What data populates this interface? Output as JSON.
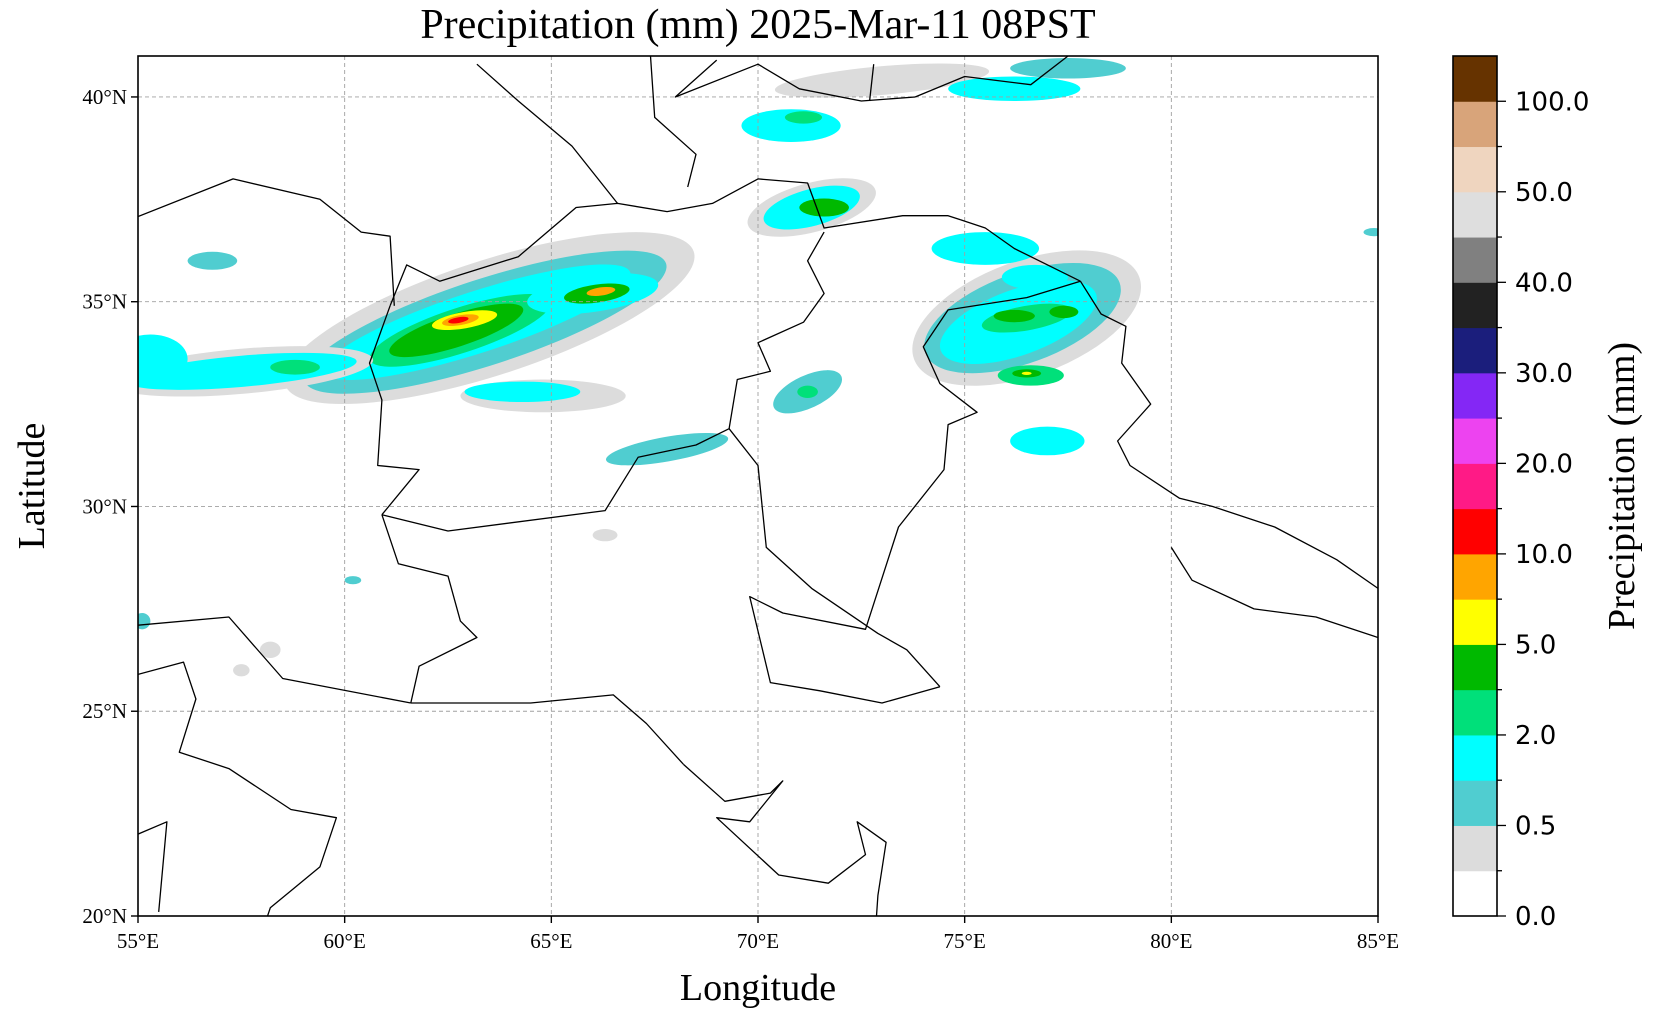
{
  "title": "Precipitation (mm)  2025-Mar-11 08PST",
  "xlabel": "Longitude",
  "ylabel": "Latitude",
  "colorbar_label": "Precipitation (mm)",
  "lon_ticks": [
    "55°E",
    "60°E",
    "65°E",
    "70°E",
    "75°E",
    "80°E",
    "85°E"
  ],
  "lat_ticks": [
    "20°N",
    "25°N",
    "30°N",
    "35°N",
    "40°N"
  ],
  "colorbar_ticks": [
    "0.0",
    "0.5",
    "2.0",
    "5.0",
    "10.0",
    "20.0",
    "30.0",
    "40.0",
    "50.0",
    "100.0"
  ],
  "chart_data": {
    "type": "heatmap",
    "title": "Precipitation (mm)  2025-Mar-11 08PST",
    "xlabel": "Longitude",
    "ylabel": "Latitude",
    "xlim": [
      55,
      85
    ],
    "ylim": [
      20,
      41
    ],
    "colorbar": {
      "label": "Precipitation (mm)",
      "bins": [
        {
          "color": "#ffffff"
        },
        {
          "color": "#dcdcdc"
        },
        {
          "color": "#50cdd0"
        },
        {
          "color": "#00ffff"
        },
        {
          "color": "#00e07a"
        },
        {
          "color": "#00b900"
        },
        {
          "color": "#ffff00"
        },
        {
          "color": "#ffa500"
        },
        {
          "color": "#ff0000"
        },
        {
          "color": "#ff1a86"
        },
        {
          "color": "#ed43f0"
        },
        {
          "color": "#8427f5"
        },
        {
          "color": "#1b1e7c"
        },
        {
          "color": "#222222"
        },
        {
          "color": "#808080"
        },
        {
          "color": "#dedede"
        },
        {
          "color": "#efd5bf"
        },
        {
          "color": "#d8a47a"
        },
        {
          "color": "#663300"
        }
      ]
    },
    "regions": [
      {
        "lon": 63.5,
        "lat": 34.6,
        "rlon": 5.2,
        "rlat": 1.4,
        "rot": -18,
        "bin": 1
      },
      {
        "lon": 63.4,
        "lat": 34.5,
        "rlon": 4.6,
        "rlat": 1.05,
        "rot": -18,
        "bin": 2
      },
      {
        "lon": 63.2,
        "lat": 34.5,
        "rlon": 3.9,
        "rlat": 0.75,
        "rot": -18,
        "bin": 3
      },
      {
        "lon": 62.8,
        "lat": 34.3,
        "rlon": 2.3,
        "rlat": 0.55,
        "rot": -18,
        "bin": 4
      },
      {
        "lon": 62.7,
        "lat": 34.3,
        "rlon": 1.7,
        "rlat": 0.4,
        "rot": -18,
        "bin": 5
      },
      {
        "lon": 62.9,
        "lat": 34.55,
        "rlon": 0.8,
        "rlat": 0.2,
        "rot": -10,
        "bin": 6
      },
      {
        "lon": 62.8,
        "lat": 34.55,
        "rlon": 0.45,
        "rlat": 0.12,
        "rot": -10,
        "bin": 7
      },
      {
        "lon": 62.75,
        "lat": 34.55,
        "rlon": 0.25,
        "rlat": 0.07,
        "rot": -10,
        "bin": 8
      },
      {
        "lon": 66.0,
        "lat": 35.2,
        "rlon": 1.6,
        "rlat": 0.45,
        "rot": -8,
        "bin": 3
      },
      {
        "lon": 66.1,
        "lat": 35.2,
        "rlon": 0.8,
        "rlat": 0.22,
        "rot": -8,
        "bin": 5
      },
      {
        "lon": 66.2,
        "lat": 35.25,
        "rlon": 0.35,
        "rlat": 0.1,
        "rot": -8,
        "bin": 7
      },
      {
        "lon": 57.5,
        "lat": 33.3,
        "rlon": 3.2,
        "rlat": 0.55,
        "rot": -5,
        "bin": 1
      },
      {
        "lon": 57.5,
        "lat": 33.3,
        "rlon": 2.8,
        "rlat": 0.38,
        "rot": -5,
        "bin": 3
      },
      {
        "lon": 58.8,
        "lat": 33.4,
        "rlon": 0.6,
        "rlat": 0.18,
        "rot": 0,
        "bin": 4
      },
      {
        "lon": 55.3,
        "lat": 33.6,
        "rlon": 0.9,
        "rlat": 0.6,
        "rot": 0,
        "bin": 3
      },
      {
        "lon": 56.8,
        "lat": 36.0,
        "rlon": 0.6,
        "rlat": 0.22,
        "rot": 0,
        "bin": 2
      },
      {
        "lon": 64.8,
        "lat": 32.7,
        "rlon": 2.0,
        "rlat": 0.4,
        "rot": 0,
        "bin": 1
      },
      {
        "lon": 64.3,
        "lat": 32.8,
        "rlon": 1.4,
        "rlat": 0.25,
        "rot": 0,
        "bin": 3
      },
      {
        "lon": 67.8,
        "lat": 31.4,
        "rlon": 1.5,
        "rlat": 0.3,
        "rot": -10,
        "bin": 2
      },
      {
        "lon": 71.2,
        "lat": 32.8,
        "rlon": 0.9,
        "rlat": 0.4,
        "rot": -25,
        "bin": 2
      },
      {
        "lon": 71.2,
        "lat": 32.8,
        "rlon": 0.25,
        "rlat": 0.15,
        "rot": 0,
        "bin": 4
      },
      {
        "lon": 71.3,
        "lat": 37.3,
        "rlon": 1.6,
        "rlat": 0.6,
        "rot": -15,
        "bin": 1
      },
      {
        "lon": 71.3,
        "lat": 37.3,
        "rlon": 1.2,
        "rlat": 0.45,
        "rot": -15,
        "bin": 3
      },
      {
        "lon": 71.6,
        "lat": 37.3,
        "rlon": 0.6,
        "rlat": 0.22,
        "rot": 0,
        "bin": 5
      },
      {
        "lon": 70.8,
        "lat": 39.3,
        "rlon": 1.2,
        "rlat": 0.4,
        "rot": 0,
        "bin": 3
      },
      {
        "lon": 71.1,
        "lat": 39.5,
        "rlon": 0.45,
        "rlat": 0.15,
        "rot": 0,
        "bin": 4
      },
      {
        "lon": 73.0,
        "lat": 40.4,
        "rlon": 2.6,
        "rlat": 0.35,
        "rot": -5,
        "bin": 1
      },
      {
        "lon": 76.2,
        "lat": 40.2,
        "rlon": 1.6,
        "rlat": 0.3,
        "rot": 0,
        "bin": 3
      },
      {
        "lon": 77.5,
        "lat": 40.7,
        "rlon": 1.4,
        "rlat": 0.25,
        "rot": 0,
        "bin": 2
      },
      {
        "lon": 76.5,
        "lat": 34.6,
        "rlon": 2.9,
        "rlat": 1.4,
        "rot": -20,
        "bin": 1
      },
      {
        "lon": 76.4,
        "lat": 34.6,
        "rlon": 2.5,
        "rlat": 1.1,
        "rot": -20,
        "bin": 2
      },
      {
        "lon": 76.3,
        "lat": 34.5,
        "rlon": 2.0,
        "rlat": 0.8,
        "rot": -20,
        "bin": 3
      },
      {
        "lon": 76.5,
        "lat": 34.6,
        "rlon": 1.1,
        "rlat": 0.3,
        "rot": -10,
        "bin": 4
      },
      {
        "lon": 76.2,
        "lat": 34.65,
        "rlon": 0.5,
        "rlat": 0.15,
        "rot": 0,
        "bin": 5
      },
      {
        "lon": 77.4,
        "lat": 34.75,
        "rlon": 0.35,
        "rlat": 0.15,
        "rot": 0,
        "bin": 5
      },
      {
        "lon": 76.6,
        "lat": 33.2,
        "rlon": 0.8,
        "rlat": 0.25,
        "rot": 0,
        "bin": 4
      },
      {
        "lon": 76.5,
        "lat": 33.25,
        "rlon": 0.35,
        "rlat": 0.1,
        "rot": 0,
        "bin": 5
      },
      {
        "lon": 76.5,
        "lat": 33.25,
        "rlon": 0.12,
        "rlat": 0.04,
        "rot": 0,
        "bin": 6
      },
      {
        "lon": 77.0,
        "lat": 31.6,
        "rlon": 0.9,
        "rlat": 0.35,
        "rot": 0,
        "bin": 3
      },
      {
        "lon": 75.5,
        "lat": 36.3,
        "rlon": 1.3,
        "rlat": 0.4,
        "rot": 0,
        "bin": 3
      },
      {
        "lon": 76.7,
        "lat": 35.6,
        "rlon": 0.8,
        "rlat": 0.3,
        "rot": 0,
        "bin": 3
      },
      {
        "lon": 84.9,
        "lat": 36.7,
        "rlon": 0.25,
        "rlat": 0.1,
        "rot": 0,
        "bin": 2
      },
      {
        "lon": 55.1,
        "lat": 27.2,
        "rlon": 0.2,
        "rlat": 0.2,
        "rot": 0,
        "bin": 2
      },
      {
        "lon": 60.2,
        "lat": 28.2,
        "rlon": 0.2,
        "rlat": 0.1,
        "rot": 0,
        "bin": 2
      },
      {
        "lon": 66.3,
        "lat": 29.3,
        "rlon": 0.3,
        "rlat": 0.15,
        "rot": 0,
        "bin": 1
      },
      {
        "lon": 58.2,
        "lat": 26.5,
        "rlon": 0.25,
        "rlat": 0.2,
        "rot": 0,
        "bin": 1
      },
      {
        "lon": 57.5,
        "lat": 26.0,
        "rlon": 0.2,
        "rlat": 0.15,
        "rot": 0,
        "bin": 1
      }
    ],
    "borders": [
      [
        [
          61.1,
          34.9
        ],
        [
          61.5,
          35.9
        ],
        [
          62.3,
          35.5
        ],
        [
          64.2,
          36.1
        ],
        [
          65.6,
          37.3
        ],
        [
          66.6,
          37.4
        ],
        [
          67.8,
          37.2
        ],
        [
          68.9,
          37.4
        ],
        [
          70.0,
          38.0
        ],
        [
          71.2,
          37.9
        ],
        [
          71.6,
          36.8
        ],
        [
          73.5,
          37.1
        ],
        [
          74.6,
          37.1
        ],
        [
          74.9,
          37.0
        ]
      ],
      [
        [
          61.1,
          34.9
        ],
        [
          60.6,
          33.5
        ],
        [
          60.9,
          32.6
        ],
        [
          60.8,
          31.0
        ],
        [
          61.8,
          30.9
        ],
        [
          60.9,
          29.8
        ]
      ],
      [
        [
          60.9,
          29.8
        ],
        [
          62.5,
          29.4
        ],
        [
          66.3,
          29.9
        ],
        [
          67.1,
          31.2
        ],
        [
          68.5,
          31.5
        ],
        [
          69.3,
          31.9
        ],
        [
          69.5,
          33.1
        ],
        [
          70.3,
          33.3
        ],
        [
          70.0,
          34.0
        ],
        [
          71.1,
          34.5
        ],
        [
          71.6,
          35.2
        ],
        [
          71.2,
          36.0
        ],
        [
          71.6,
          36.7
        ]
      ],
      [
        [
          60.9,
          29.8
        ],
        [
          61.3,
          28.6
        ],
        [
          62.5,
          28.3
        ],
        [
          62.8,
          27.2
        ],
        [
          63.2,
          26.8
        ],
        [
          61.8,
          26.1
        ],
        [
          61.6,
          25.2
        ]
      ],
      [
        [
          61.6,
          25.2
        ],
        [
          62.5,
          25.2
        ],
        [
          64.5,
          25.2
        ],
        [
          66.5,
          25.4
        ],
        [
          67.3,
          24.7
        ],
        [
          68.2,
          23.7
        ]
      ],
      [
        [
          69.3,
          31.9
        ],
        [
          70.0,
          31.0
        ],
        [
          70.2,
          29.0
        ],
        [
          71.3,
          28.0
        ],
        [
          72.9,
          26.9
        ],
        [
          73.6,
          26.5
        ],
        [
          74.4,
          25.6
        ]
      ],
      [
        [
          74.4,
          25.6
        ],
        [
          73.0,
          25.2
        ],
        [
          71.5,
          25.5
        ],
        [
          70.3,
          25.7
        ],
        [
          69.8,
          27.8
        ],
        [
          70.6,
          27.4
        ],
        [
          72.6,
          27.0
        ],
        [
          73.4,
          29.5
        ],
        [
          74.5,
          30.9
        ],
        [
          74.6,
          32.0
        ],
        [
          75.3,
          32.3
        ],
        [
          74.4,
          33.0
        ],
        [
          74.0,
          33.9
        ],
        [
          74.6,
          34.8
        ],
        [
          76.5,
          35.1
        ],
        [
          77.8,
          35.5
        ]
      ],
      [
        [
          77.8,
          35.5
        ],
        [
          78.3,
          34.7
        ],
        [
          78.9,
          34.4
        ],
        [
          78.8,
          33.5
        ],
        [
          79.5,
          32.5
        ],
        [
          78.7,
          31.6
        ],
        [
          79.0,
          31.0
        ],
        [
          80.2,
          30.2
        ],
        [
          81.0,
          30.0
        ],
        [
          82.5,
          29.5
        ],
        [
          84.0,
          28.7
        ],
        [
          85.0,
          28.0
        ]
      ],
      [
        [
          80.0,
          29.0
        ],
        [
          80.5,
          28.2
        ],
        [
          82.0,
          27.5
        ],
        [
          83.5,
          27.3
        ],
        [
          85.0,
          26.8
        ]
      ],
      [
        [
          74.9,
          37.0
        ],
        [
          75.5,
          36.8
        ],
        [
          76.2,
          36.3
        ],
        [
          77.8,
          35.5
        ]
      ],
      [
        [
          73.8,
          40.0
        ],
        [
          75.0,
          40.5
        ],
        [
          76.6,
          40.3
        ],
        [
          77.5,
          41.0
        ]
      ],
      [
        [
          69.0,
          40.9
        ],
        [
          68.0,
          40.0
        ],
        [
          70.0,
          40.8
        ],
        [
          71.0,
          40.2
        ],
        [
          72.5,
          39.9
        ],
        [
          73.8,
          40.0
        ]
      ],
      [
        [
          67.4,
          41.0
        ],
        [
          67.5,
          39.5
        ],
        [
          68.5,
          38.6
        ],
        [
          68.3,
          37.8
        ]
      ],
      [
        [
          72.8,
          40.8
        ],
        [
          72.7,
          39.9
        ]
      ],
      [
        [
          55.0,
          25.9
        ],
        [
          56.1,
          26.2
        ],
        [
          56.4,
          25.3
        ],
        [
          56.0,
          24.0
        ],
        [
          57.2,
          23.6
        ],
        [
          58.7,
          22.6
        ],
        [
          59.8,
          22.4
        ],
        [
          59.4,
          21.2
        ],
        [
          58.2,
          20.2
        ],
        [
          57.8,
          19.0
        ]
      ],
      [
        [
          55.0,
          27.1
        ],
        [
          57.2,
          27.3
        ],
        [
          58.5,
          25.8
        ],
        [
          61.6,
          25.2
        ]
      ],
      [
        [
          54.8,
          37.0
        ],
        [
          57.3,
          38.0
        ],
        [
          59.4,
          37.5
        ],
        [
          60.4,
          36.7
        ],
        [
          61.1,
          36.6
        ],
        [
          61.2,
          34.9
        ]
      ],
      [
        [
          63.2,
          40.8
        ],
        [
          64.2,
          39.9
        ],
        [
          65.5,
          38.8
        ],
        [
          66.6,
          37.4
        ]
      ],
      [
        [
          55.0,
          22.0
        ],
        [
          55.7,
          22.3
        ],
        [
          55.5,
          20.1
        ]
      ],
      [
        [
          68.2,
          23.7
        ],
        [
          69.2,
          22.8
        ],
        [
          70.3,
          23.0
        ],
        [
          70.6,
          23.3
        ],
        [
          69.8,
          22.3
        ],
        [
          69.0,
          22.4
        ],
        [
          70.5,
          21.0
        ],
        [
          71.7,
          20.8
        ],
        [
          72.6,
          21.5
        ],
        [
          72.4,
          22.3
        ],
        [
          73.1,
          21.8
        ],
        [
          72.9,
          20.5
        ],
        [
          72.8,
          19.0
        ]
      ]
    ]
  }
}
